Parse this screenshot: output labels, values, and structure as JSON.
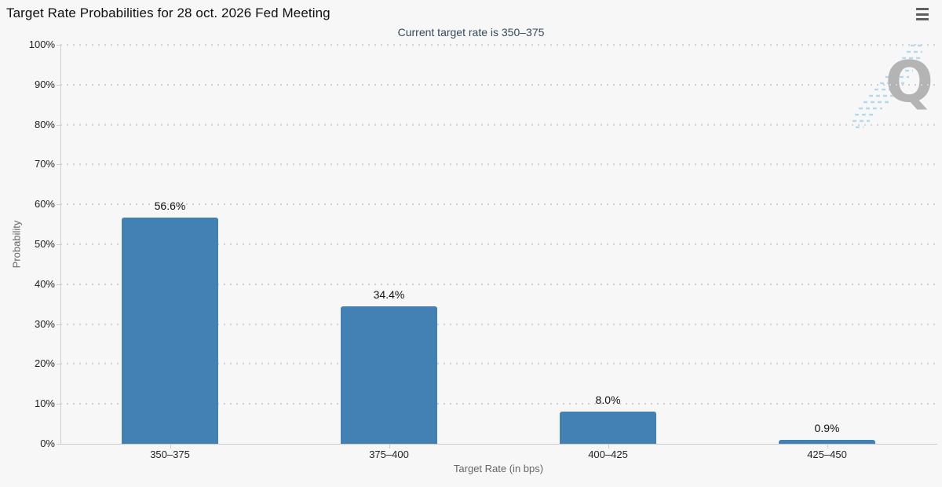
{
  "header": {
    "title": "Target Rate Probabilities for 28 oct. 2026 Fed Meeting",
    "menu_icon": "hamburger-menu-icon"
  },
  "watermark": {
    "letter": "Q"
  },
  "chart_data": {
    "type": "bar",
    "title": "Target Rate Probabilities for 28 oct. 2026 Fed Meeting",
    "subtitle": "Current target rate is 350–375",
    "categories": [
      "350–375",
      "375–400",
      "400–425",
      "425–450"
    ],
    "values": [
      56.6,
      34.4,
      8.0,
      0.9
    ],
    "value_labels": [
      "56.6%",
      "34.4%",
      "8.0%",
      "0.9%"
    ],
    "xlabel": "Target Rate (in bps)",
    "ylabel": "Probability",
    "ylim": [
      0,
      100
    ],
    "ytick_step": 10,
    "ytick_labels": [
      "0%",
      "10%",
      "20%",
      "30%",
      "40%",
      "50%",
      "60%",
      "70%",
      "80%",
      "90%",
      "100%"
    ],
    "grid": "dotted-horizontal",
    "legend": "none",
    "colors": {
      "bar": "#4380b4",
      "background": "#f7f7f7",
      "title_text": "#101010",
      "subtitle_text": "#35495e",
      "tick_text": "#222222",
      "axis_title_text": "#666666",
      "axis_line": "#cccccc",
      "grid_dot": "#d2d2d2",
      "watermark": "#b4b4b4",
      "watermark_swoosh": "#b7d9eb",
      "menu_icon": "#5f5f5f"
    }
  }
}
